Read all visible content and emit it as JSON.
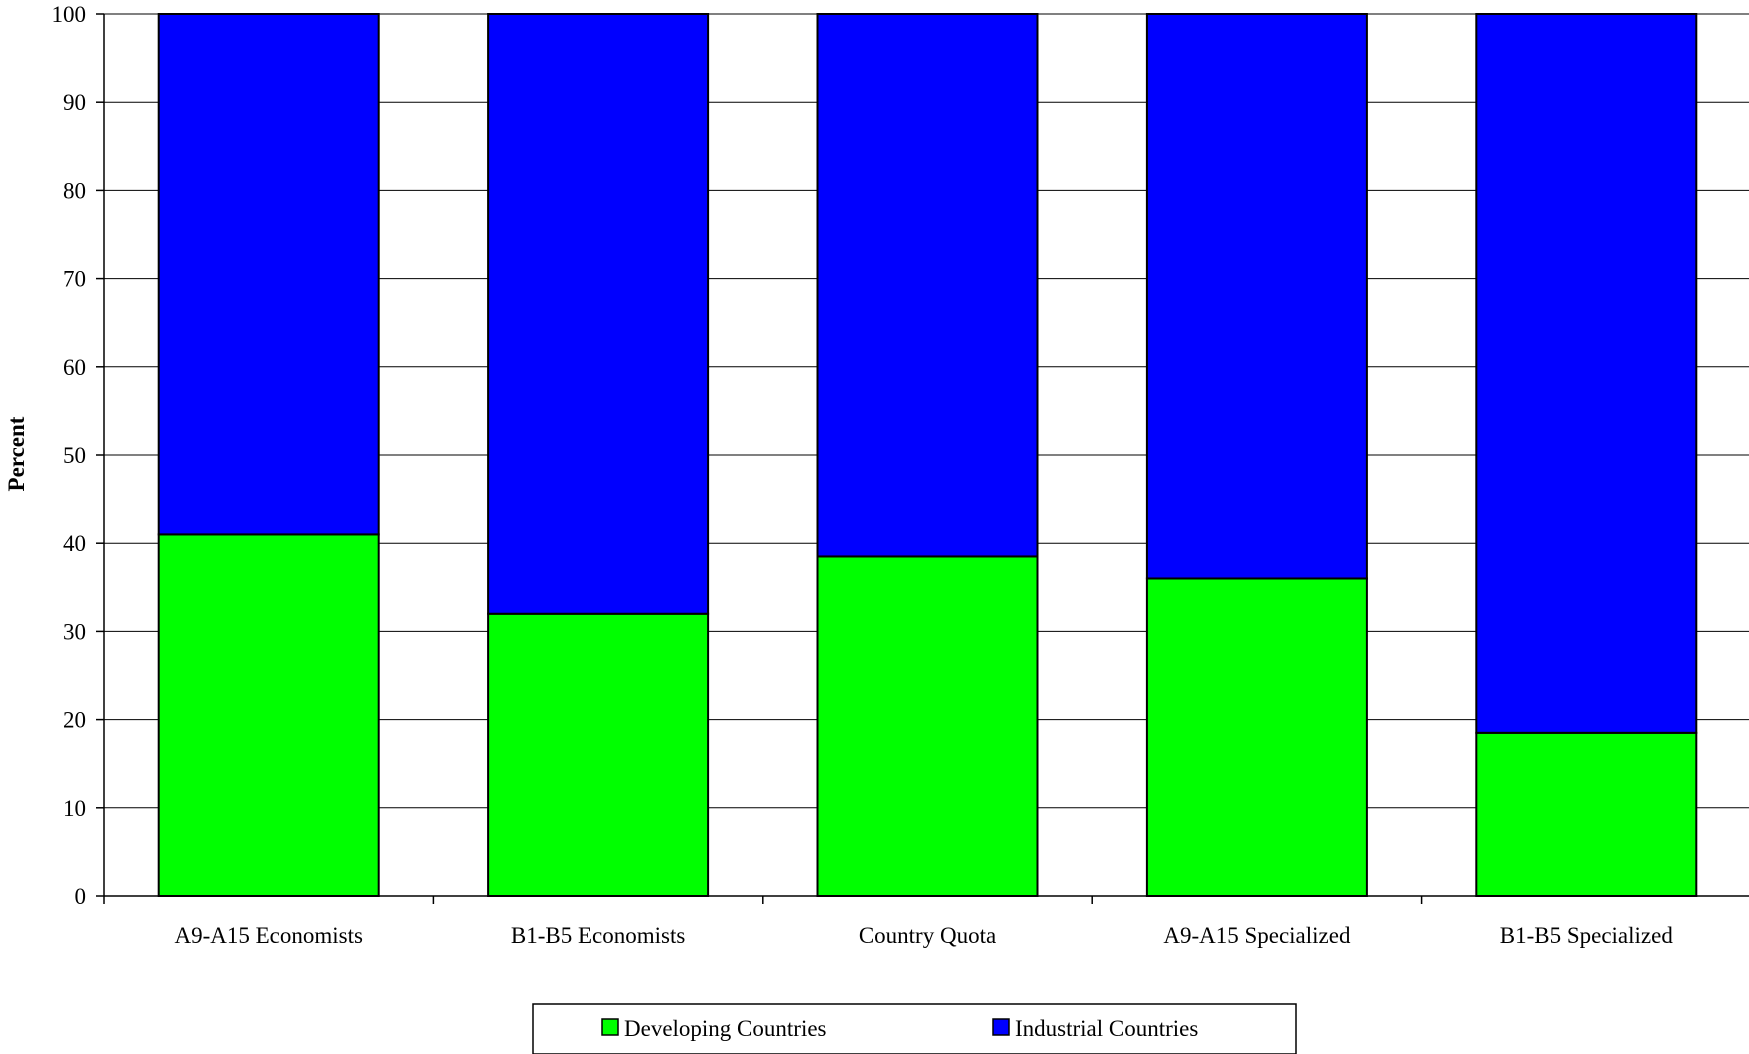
{
  "chart_data": {
    "type": "bar",
    "stacked": true,
    "categories": [
      "A9-A15 Economists",
      "B1-B5 Economists",
      "Country Quota",
      "A9-A15 Specialized",
      "B1-B5 Specialized"
    ],
    "series": [
      {
        "name": "Developing Countries",
        "color": "#00ff00",
        "values": [
          41,
          32,
          38.5,
          36,
          18.5
        ]
      },
      {
        "name": "Industrial Countries",
        "color": "#0000ff",
        "values": [
          59,
          68,
          61.5,
          64,
          81.5
        ]
      }
    ],
    "title": "",
    "xlabel": "",
    "ylabel": "Percent",
    "ylim": [
      0,
      100
    ],
    "yticks": [
      0,
      10,
      20,
      30,
      40,
      50,
      60,
      70,
      80,
      90,
      100
    ],
    "grid": true,
    "legend_position": "bottom"
  }
}
